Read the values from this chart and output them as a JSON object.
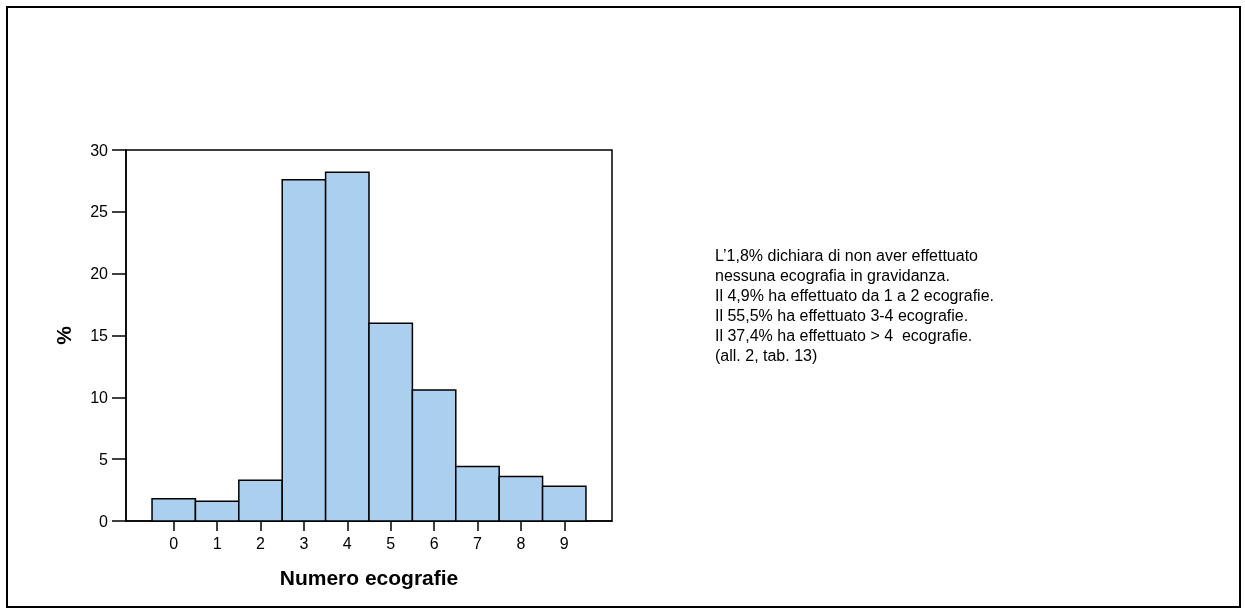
{
  "chart_data": {
    "type": "histogram",
    "xlabel": "Numero ecografie",
    "ylabel": "%",
    "bins": [
      -0.5,
      0.5,
      1.5,
      2.5,
      3.5,
      4.5,
      5.5,
      6.5,
      7.5,
      8.5,
      9.5
    ],
    "values": [
      1.8,
      1.6,
      3.3,
      27.6,
      28.2,
      16.0,
      10.6,
      4.4,
      3.6,
      2.8
    ],
    "color": "#abcfee",
    "xlim": [
      -1.1,
      10.1
    ],
    "xticks": [
      0,
      1,
      2,
      3,
      4,
      5,
      6,
      7,
      8,
      9
    ],
    "ylim": [
      0,
      30
    ],
    "yticks": [
      0,
      5,
      10,
      15,
      20,
      25,
      30
    ],
    "annotations": [
      "L’1,8% dichiara di non aver effettuato\nnessuna ecografia in gravidanza.\nIl 4,9% ha effettuato da 1 a 2 ecografie.\nIl 55,5% ha effettuato 3-4 ecografie.\nIl 37,4% ha effettuato > 4  ecografie.\n(all. 2, tab. 13)"
    ]
  }
}
